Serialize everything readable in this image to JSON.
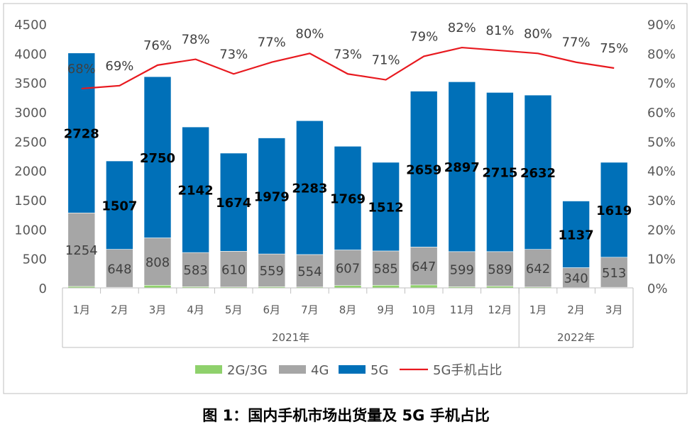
{
  "caption": "图 1：国内手机市场出货量及 5G 手机占比",
  "colors": {
    "g23": "#8fd16c",
    "g4": "#a6a6a6",
    "g5": "#0070b8",
    "ratio": "#e8191f",
    "axis_text": "#595959",
    "frame": "#bfbfbf",
    "gridline": "#d9d9d9"
  },
  "chart_data": {
    "type": "bar",
    "title": "",
    "stacked": true,
    "categories": [
      "1月",
      "2月",
      "3月",
      "4月",
      "5月",
      "6月",
      "7月",
      "8月",
      "9月",
      "10月",
      "11月",
      "12月",
      "1月",
      "2月",
      "3月"
    ],
    "groups": [
      {
        "label": "2021年",
        "count": 12
      },
      {
        "label": "2022年",
        "count": 3
      }
    ],
    "series": [
      {
        "name": "2G/3G",
        "type": "bar",
        "color": "#8fd16c",
        "values": [
          25,
          10,
          45,
          20,
          15,
          20,
          15,
          40,
          45,
          50,
          20,
          30,
          15,
          5,
          10
        ]
      },
      {
        "name": "4G",
        "type": "bar",
        "color": "#a6a6a6",
        "values": [
          1254,
          648,
          808,
          583,
          610,
          559,
          554,
          607,
          585,
          647,
          599,
          589,
          642,
          340,
          513
        ]
      },
      {
        "name": "5G",
        "type": "bar",
        "color": "#0070b8",
        "values": [
          2728,
          1507,
          2750,
          2142,
          1674,
          1979,
          2283,
          1769,
          1512,
          2659,
          2897,
          2715,
          2632,
          1137,
          1619
        ]
      },
      {
        "name": "5G手机占比",
        "type": "line",
        "axis": "right",
        "color": "#e8191f",
        "values": [
          68,
          69,
          76,
          78,
          73,
          77,
          80,
          73,
          71,
          79,
          82,
          81,
          80,
          77,
          75
        ]
      }
    ],
    "bar_labels_4g": [
      "1254",
      "648",
      "808",
      "583",
      "610",
      "559",
      "554",
      "607",
      "585",
      "647",
      "599",
      "589",
      "642",
      "340",
      "513"
    ],
    "bar_labels_5g": [
      "2728",
      "1507",
      "2750",
      "2142",
      "1674",
      "1979",
      "2283",
      "1769",
      "1512",
      "2659",
      "2897",
      "2715",
      "2632",
      "1137",
      "1619"
    ],
    "ratio_labels": [
      "68%",
      "69%",
      "76%",
      "78%",
      "73%",
      "77%",
      "80%",
      "73%",
      "71%",
      "79%",
      "82%",
      "81%",
      "80%",
      "77%",
      "75%"
    ],
    "y_left": {
      "min": 0,
      "max": 4500,
      "ticks": [
        "0",
        "500",
        "1000",
        "1500",
        "2000",
        "2500",
        "3000",
        "3500",
        "4000",
        "4500"
      ]
    },
    "y_right": {
      "min": 0,
      "max": 90,
      "ticks": [
        "0%",
        "10%",
        "20%",
        "30%",
        "40%",
        "50%",
        "60%",
        "70%",
        "80%",
        "90%"
      ]
    },
    "legend_position": "bottom",
    "legend": [
      "2G/3G",
      "4G",
      "5G",
      "5G手机占比"
    ],
    "grid": false
  }
}
